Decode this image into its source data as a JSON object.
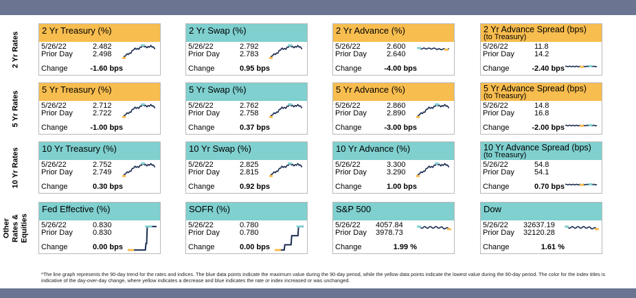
{
  "row_labels": [
    "2 Yr Rates",
    "5 Yr Rates",
    "10 Yr Rates",
    "Other Rates & Equities"
  ],
  "colors": {
    "down": "#f7bd4f",
    "up": "#7fd0cf",
    "line": "#1a2a4f",
    "max_point": "#7fd0cf",
    "min_point": "#f7bd4f",
    "bar": "#6b7491"
  },
  "common": {
    "date_label": "5/26/22",
    "prior_label": "Prior Day",
    "change_label": "Change"
  },
  "cards": [
    {
      "title": "2 Yr Treasury (%)",
      "subtitle": "",
      "color": "yellow",
      "current": "2.482",
      "prior": "2.498",
      "change": "-1.60 bps",
      "trend": "rising"
    },
    {
      "title": "2 Yr Swap (%)",
      "subtitle": "",
      "color": "blue",
      "current": "2.792",
      "prior": "2.783",
      "change": "0.95 bps",
      "trend": "rising"
    },
    {
      "title": "2 Yr Advance (%)",
      "subtitle": "",
      "color": "yellow",
      "current": "2.600",
      "prior": "2.640",
      "change": "-4.00 bps",
      "trend": "flat"
    },
    {
      "title": "2 Yr Advance Spread (bps)",
      "subtitle": "(to Treasury)",
      "color": "yellow",
      "current": "11.8",
      "prior": "14.2",
      "change": "-2.40 bps",
      "trend": "flat_low"
    },
    {
      "title": "5 Yr Treasury (%)",
      "subtitle": "",
      "color": "yellow",
      "current": "2.712",
      "prior": "2.722",
      "change": "-1.00 bps",
      "trend": "rising"
    },
    {
      "title": "5 Yr Swap (%)",
      "subtitle": "",
      "color": "blue",
      "current": "2.762",
      "prior": "2.758",
      "change": "0.37 bps",
      "trend": "rising"
    },
    {
      "title": "5 Yr Advance (%)",
      "subtitle": "",
      "color": "yellow",
      "current": "2.860",
      "prior": "2.890",
      "change": "-3.00 bps",
      "trend": "rising"
    },
    {
      "title": "5 Yr Advance Spread (bps)",
      "subtitle": "(to Treasury)",
      "color": "yellow",
      "current": "14.8",
      "prior": "16.8",
      "change": "-2.00 bps",
      "trend": "flat_low"
    },
    {
      "title": "10 Yr Treasury (%)",
      "subtitle": "",
      "color": "blue",
      "current": "2.752",
      "prior": "2.749",
      "change": "0.30 bps",
      "trend": "rising"
    },
    {
      "title": "10 Yr Swap (%)",
      "subtitle": "",
      "color": "blue",
      "current": "2.825",
      "prior": "2.815",
      "change": "0.92 bps",
      "trend": "rising"
    },
    {
      "title": "10 Yr Advance (%)",
      "subtitle": "",
      "color": "blue",
      "current": "3.300",
      "prior": "3.290",
      "change": "1.00 bps",
      "trend": "rising"
    },
    {
      "title": "10 Yr Advance Spread (bps)",
      "subtitle": "(to Treasury)",
      "color": "blue",
      "current": "54.8",
      "prior": "54.1",
      "change": "0.70 bps",
      "trend": "flat_low"
    },
    {
      "title": "Fed Effective (%)",
      "subtitle": "",
      "color": "blue",
      "current": "0.830",
      "prior": "0.830",
      "change": "0.00 bps",
      "trend": "step_one"
    },
    {
      "title": "SOFR (%)",
      "subtitle": "",
      "color": "blue",
      "current": "0.780",
      "prior": "0.780",
      "change": "0.00 bps",
      "trend": "step_two"
    },
    {
      "title": "S&P 500",
      "subtitle": "",
      "color": "blue",
      "current": "4057.84",
      "prior": "3978.73",
      "change": "1.99 %",
      "trend": "flat_high"
    },
    {
      "title": "Dow",
      "subtitle": "",
      "color": "blue",
      "current": "32637.19",
      "prior": "32120.28",
      "change": "1.61 %",
      "trend": "flat_high"
    }
  ],
  "footnote": "*The line graph represents the 90-day trend for the rates and indices. The blue data points indicate the maximum value during the 90-day period, while the yellow data points indicate the lowest value during the 90-day period. The color for the index titles is indicative of the day-over-day change, where yellow indicates a decrease and blue indicates the rate or index increased or was unchanged."
}
